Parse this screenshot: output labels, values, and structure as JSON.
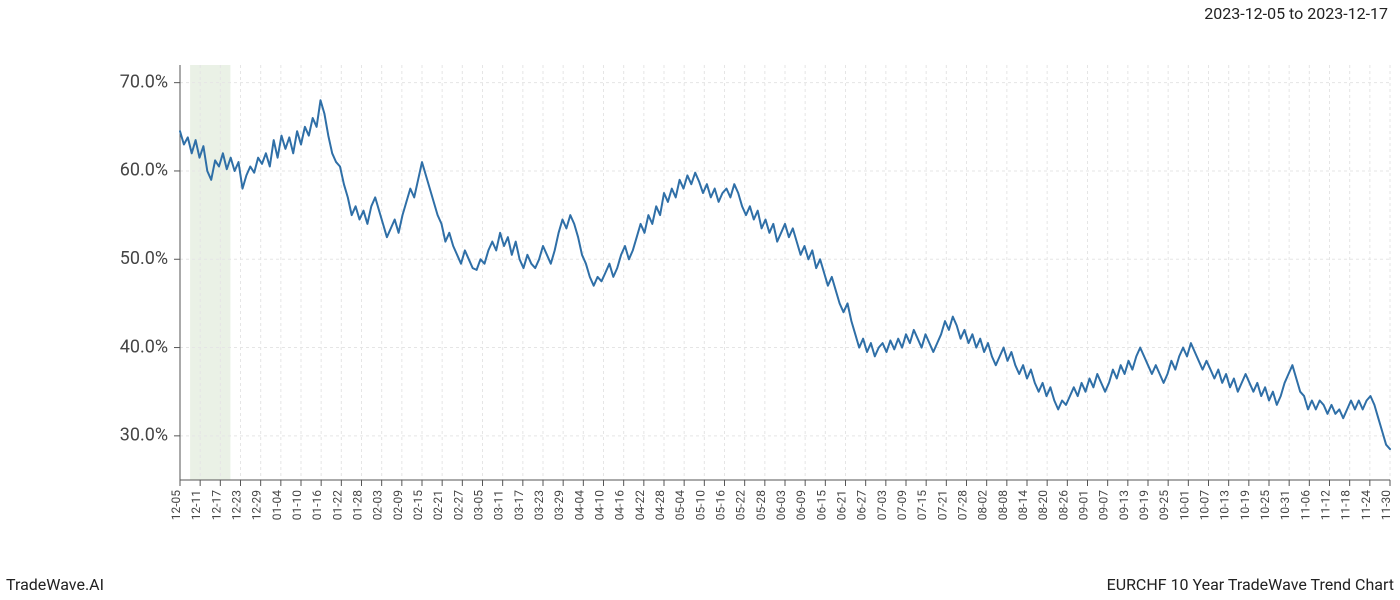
{
  "header": {
    "date_range": "2023-12-05 to 2023-12-17"
  },
  "footer": {
    "left": "TradeWave.AI",
    "right": "EURCHF 10 Year TradeWave Trend Chart"
  },
  "chart": {
    "type": "line",
    "background_color": "#ffffff",
    "plot_border_color": "#555555",
    "grid_color": "#e5e5e5",
    "highlight_band": {
      "fill": "#dce8d6",
      "opacity": 0.6,
      "x_start_idx": 1,
      "x_end_idx": 3
    },
    "line": {
      "color": "#2f6fa7",
      "width": 2
    },
    "y_axis": {
      "min": 25,
      "max": 72,
      "ticks": [
        30,
        40,
        50,
        60,
        70
      ],
      "tick_format_suffix": ".0%",
      "label_fontsize": 18,
      "label_color": "#444444"
    },
    "x_axis": {
      "labels": [
        "12-05",
        "12-11",
        "12-17",
        "12-23",
        "12-29",
        "01-04",
        "01-10",
        "01-16",
        "01-22",
        "01-28",
        "02-03",
        "02-09",
        "02-15",
        "02-21",
        "02-27",
        "03-05",
        "03-11",
        "03-17",
        "03-23",
        "03-29",
        "04-04",
        "04-10",
        "04-16",
        "04-22",
        "04-28",
        "05-04",
        "05-10",
        "05-16",
        "05-22",
        "05-28",
        "06-03",
        "06-09",
        "06-15",
        "06-21",
        "06-27",
        "07-03",
        "07-09",
        "07-15",
        "07-21",
        "07-28",
        "08-02",
        "08-08",
        "08-14",
        "08-20",
        "08-26",
        "09-01",
        "09-07",
        "09-13",
        "09-19",
        "09-25",
        "10-01",
        "10-07",
        "10-13",
        "10-19",
        "10-25",
        "10-31",
        "11-06",
        "11-12",
        "11-18",
        "11-24",
        "11-30"
      ],
      "label_fontsize": 12,
      "label_color": "#444444",
      "rotation": 90
    },
    "series": [
      {
        "name": "trend",
        "values": [
          64.5,
          63.0,
          63.8,
          62.0,
          63.5,
          61.5,
          62.8,
          60.0,
          59.0,
          61.2,
          60.5,
          62.0,
          60.2,
          61.5,
          60.0,
          61.0,
          58.0,
          59.5,
          60.5,
          59.8,
          61.5,
          60.8,
          62.0,
          60.5,
          63.5,
          61.5,
          64.0,
          62.5,
          63.8,
          62.0,
          64.5,
          63.0,
          65.0,
          64.0,
          66.0,
          65.0,
          68.0,
          66.5,
          64.0,
          62.0,
          61.0,
          60.5,
          58.5,
          57.0,
          55.0,
          56.0,
          54.5,
          55.5,
          54.0,
          56.0,
          57.0,
          55.5,
          54.0,
          52.5,
          53.5,
          54.5,
          53.0,
          55.0,
          56.5,
          58.0,
          57.0,
          59.0,
          61.0,
          59.5,
          58.0,
          56.5,
          55.0,
          54.0,
          52.0,
          53.0,
          51.5,
          50.5,
          49.5,
          51.0,
          50.0,
          49.0,
          48.8,
          50.0,
          49.5,
          51.0,
          52.0,
          51.0,
          53.0,
          51.5,
          52.5,
          50.5,
          52.0,
          50.0,
          49.0,
          50.5,
          49.5,
          49.0,
          50.0,
          51.5,
          50.5,
          49.5,
          51.0,
          53.0,
          54.5,
          53.5,
          55.0,
          54.0,
          52.5,
          50.5,
          49.5,
          48.0,
          47.0,
          48.0,
          47.5,
          48.5,
          49.5,
          48.0,
          49.0,
          50.5,
          51.5,
          50.0,
          51.0,
          52.5,
          54.0,
          53.0,
          55.0,
          54.0,
          56.0,
          55.0,
          57.5,
          56.5,
          58.0,
          57.0,
          59.0,
          58.0,
          59.5,
          58.5,
          59.8,
          58.8,
          57.5,
          58.5,
          57.0,
          58.0,
          56.5,
          57.5,
          58.0,
          57.0,
          58.5,
          57.5,
          56.0,
          55.0,
          56.0,
          54.5,
          55.5,
          53.5,
          54.5,
          53.0,
          54.0,
          52.0,
          53.0,
          54.0,
          52.5,
          53.5,
          52.0,
          50.5,
          51.5,
          50.0,
          51.0,
          49.0,
          50.0,
          48.5,
          47.0,
          48.0,
          46.5,
          45.0,
          44.0,
          45.0,
          43.0,
          41.5,
          40.0,
          41.0,
          39.5,
          40.5,
          39.0,
          40.0,
          40.5,
          39.5,
          40.8,
          39.8,
          41.0,
          40.0,
          41.5,
          40.5,
          42.0,
          41.0,
          40.0,
          41.5,
          40.5,
          39.5,
          40.5,
          41.5,
          43.0,
          42.0,
          43.5,
          42.5,
          41.0,
          42.0,
          40.5,
          41.5,
          40.0,
          41.0,
          39.5,
          40.5,
          39.0,
          38.0,
          39.0,
          40.0,
          38.5,
          39.5,
          38.0,
          37.0,
          38.0,
          36.5,
          37.5,
          36.0,
          35.0,
          36.0,
          34.5,
          35.5,
          34.0,
          33.0,
          34.0,
          33.5,
          34.5,
          35.5,
          34.5,
          36.0,
          35.0,
          36.5,
          35.5,
          37.0,
          36.0,
          35.0,
          36.0,
          37.5,
          36.5,
          38.0,
          37.0,
          38.5,
          37.5,
          39.0,
          40.0,
          39.0,
          38.0,
          37.0,
          38.0,
          37.0,
          36.0,
          37.0,
          38.5,
          37.5,
          39.0,
          40.0,
          39.0,
          40.5,
          39.5,
          38.5,
          37.5,
          38.5,
          37.5,
          36.5,
          37.5,
          36.0,
          37.0,
          35.5,
          36.5,
          35.0,
          36.0,
          37.0,
          36.0,
          35.0,
          36.0,
          34.5,
          35.5,
          34.0,
          35.0,
          33.5,
          34.5,
          36.0,
          37.0,
          38.0,
          36.5,
          35.0,
          34.5,
          33.0,
          34.0,
          33.0,
          34.0,
          33.5,
          32.5,
          33.5,
          32.5,
          33.0,
          32.0,
          33.0,
          34.0,
          33.0,
          34.0,
          33.0,
          34.0,
          34.5,
          33.5,
          32.0,
          30.5,
          29.0,
          28.5
        ]
      }
    ]
  }
}
